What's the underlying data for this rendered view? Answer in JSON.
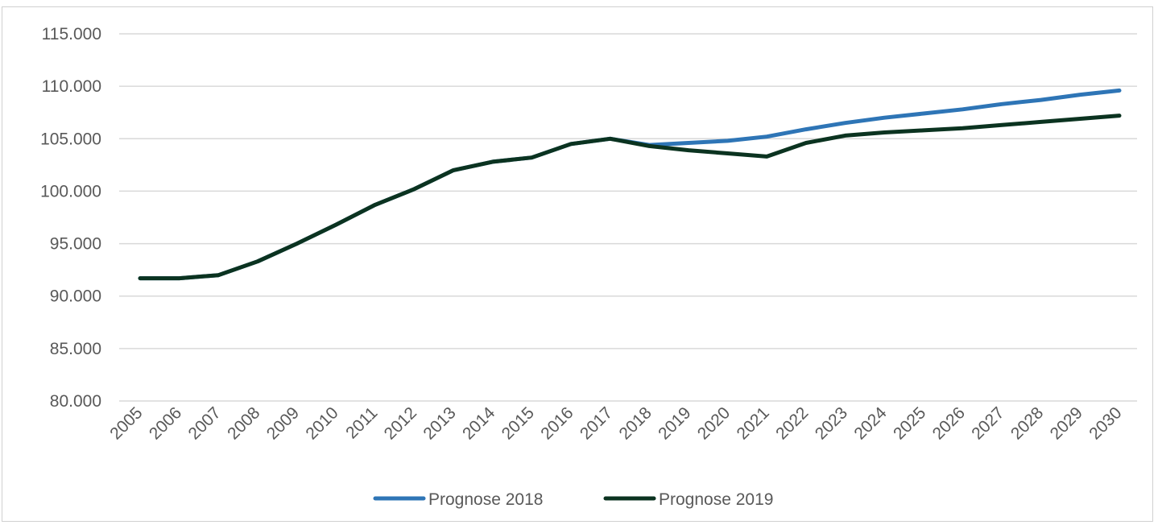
{
  "chart_data": {
    "type": "line",
    "title": "",
    "xlabel": "",
    "ylabel": "",
    "x": [
      "2005",
      "2006",
      "2007",
      "2008",
      "2009",
      "2010",
      "2011",
      "2012",
      "2013",
      "2014",
      "2015",
      "2016",
      "2017",
      "2018",
      "2019",
      "2020",
      "2021",
      "2022",
      "2023",
      "2024",
      "2025",
      "2026",
      "2027",
      "2028",
      "2029",
      "2030"
    ],
    "ylim": [
      80000,
      115000
    ],
    "y_ticks": [
      80000,
      85000,
      90000,
      95000,
      100000,
      105000,
      110000,
      115000
    ],
    "y_tick_labels": [
      "80.000",
      "85.000",
      "90.000",
      "95.000",
      "100.000",
      "105.000",
      "110.000",
      "115.000"
    ],
    "grid": true,
    "legend_position": "bottom",
    "series": [
      {
        "name": "Prognose 2018",
        "color": "#2e75b6",
        "values": [
          91700,
          91700,
          92000,
          93300,
          95000,
          96800,
          98700,
          100200,
          102000,
          102800,
          103200,
          104500,
          105000,
          104400,
          104600,
          104800,
          105200,
          105900,
          106500,
          107000,
          107400,
          107800,
          108300,
          108700,
          109200,
          109600
        ]
      },
      {
        "name": "Prognose 2019",
        "color": "#0b3320",
        "values": [
          91700,
          91700,
          92000,
          93300,
          95000,
          96800,
          98700,
          100200,
          102000,
          102800,
          103200,
          104500,
          105000,
          104300,
          103900,
          103600,
          103300,
          104600,
          105300,
          105600,
          105800,
          106000,
          106300,
          106600,
          106900,
          107200
        ]
      }
    ]
  }
}
